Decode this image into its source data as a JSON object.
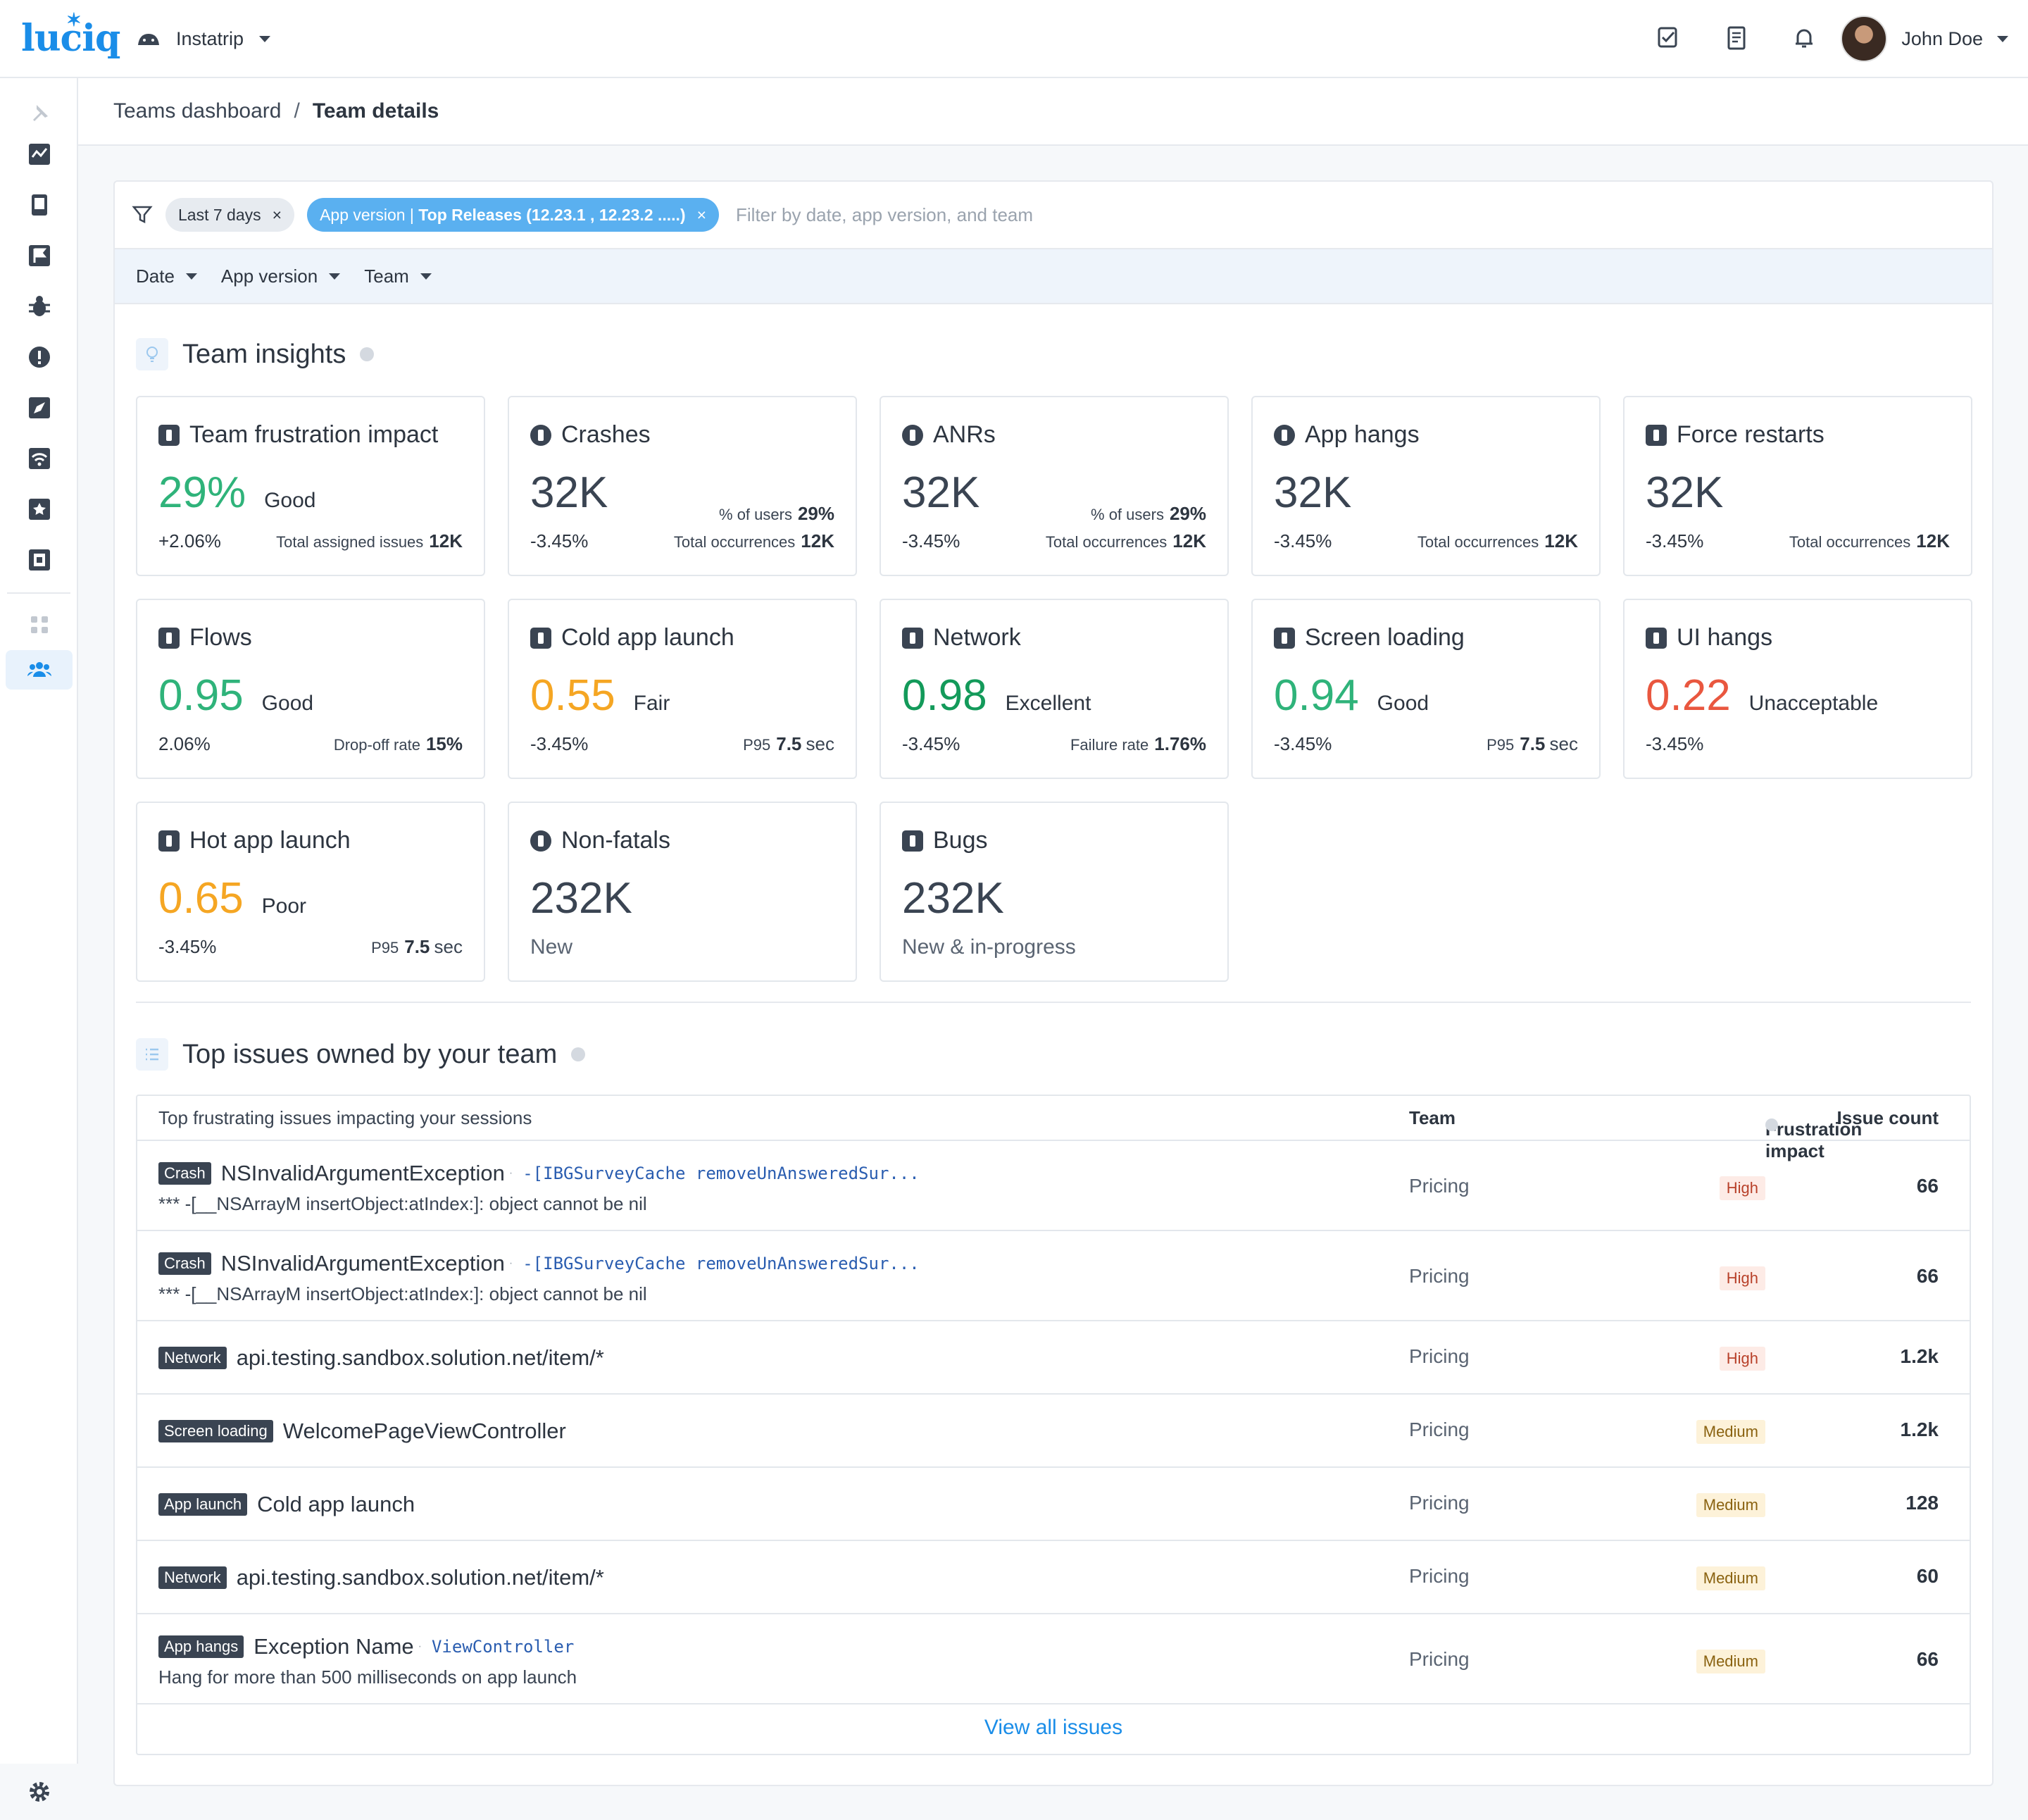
{
  "header": {
    "logo": "luciq",
    "app_name": "Instatrip",
    "user_name": "John Doe",
    "icons": [
      "tasks-icon",
      "notes-icon",
      "bell-icon"
    ]
  },
  "sidebar": {
    "items": [
      "pin-icon",
      "dashboard-icon",
      "devices-icon",
      "flag-icon",
      "bug-icon",
      "alert-icon",
      "rocket-icon",
      "network-icon",
      "star-icon",
      "screen-icon",
      "apps-icon",
      "team-icon"
    ],
    "active": "team-icon"
  },
  "breadcrumb": {
    "parent": "Teams dashboard",
    "separator": "/",
    "current": "Team details"
  },
  "filters": {
    "chip_date": "Last 7 days",
    "chip_version_prefix": "App version | ",
    "chip_version_value": "Top Releases (12.23.1 , 12.23.2 .....)",
    "placeholder": "Filter by date, app version, and team",
    "dropdowns": [
      "Date",
      "App version",
      "Team"
    ]
  },
  "insights": {
    "title": "Team insights",
    "cards": [
      {
        "title": "Team frustration impact",
        "value": "29%",
        "rating": "Good",
        "left": "+2.06%",
        "right_label": "Total assigned issues",
        "right_value": "12K"
      },
      {
        "title": "Crashes",
        "value": "32K",
        "mid_label": "% of users",
        "mid_value": "29%",
        "left": "-3.45%",
        "right_label": "Total occurrences",
        "right_value": "12K"
      },
      {
        "title": "ANRs",
        "value": "32K",
        "mid_label": "% of users",
        "mid_value": "29%",
        "left": "-3.45%",
        "right_label": "Total occurrences",
        "right_value": "12K"
      },
      {
        "title": "App hangs",
        "value": "32K",
        "left": "-3.45%",
        "right_label": "Total occurrences",
        "right_value": "12K"
      },
      {
        "title": "Force restarts",
        "value": "32K",
        "left": "-3.45%",
        "right_label": "Total occurrences",
        "right_value": "12K"
      },
      {
        "title": "Flows",
        "value": "0.95",
        "rating": "Good",
        "left": "2.06%",
        "right_label": "Drop-off rate",
        "right_value": "15%"
      },
      {
        "title": "Cold app launch",
        "value": "0.55",
        "rating": "Fair",
        "left": "-3.45%",
        "right_label": "P95",
        "right_value": "7.5",
        "right_unit": "sec"
      },
      {
        "title": "Network",
        "value": "0.98",
        "rating": "Excellent",
        "left": "-3.45%",
        "right_label": "Failure rate",
        "right_value": "1.76%"
      },
      {
        "title": "Screen loading",
        "value": "0.94",
        "rating": "Good",
        "left": "-3.45%",
        "right_label": "P95",
        "right_value": "7.5",
        "right_unit": "sec"
      },
      {
        "title": "UI hangs",
        "value": "0.22",
        "rating": "Unacceptable",
        "left": "-3.45%"
      },
      {
        "title": "Hot app launch",
        "value": "0.65",
        "rating": "Poor",
        "left": "-3.45%",
        "right_label": "P95",
        "right_value": "7.5",
        "right_unit": "sec"
      },
      {
        "title": "Non-fatals",
        "value": "232K",
        "sub": "New"
      },
      {
        "title": "Bugs",
        "value": "232K",
        "sub": "New & in-progress"
      }
    ]
  },
  "issues": {
    "title": "Top issues owned by your team",
    "columns": [
      "Top frustrating issues impacting your sessions",
      "Team",
      "Frustration impact",
      "Issue count"
    ],
    "rows": [
      {
        "tag": "Crash",
        "name": "NSInvalidArgumentException",
        "sep": "·",
        "code": "-[IBGSurveyCache removeUnAnsweredSur...",
        "detail": "*** -[__NSArrayM insertObject:atIndex:]: object cannot be nil",
        "team": "Pricing",
        "impact": "High",
        "count": "66"
      },
      {
        "tag": "Crash",
        "name": "NSInvalidArgumentException",
        "sep": "·",
        "code": "-[IBGSurveyCache removeUnAnsweredSur...",
        "detail": "*** -[__NSArrayM insertObject:atIndex:]: object cannot be nil",
        "team": "Pricing",
        "impact": "High",
        "count": "66"
      },
      {
        "tag": "Network",
        "name": "api.testing.sandbox.solution.net/item/*",
        "team": "Pricing",
        "impact": "High",
        "count": "1.2k"
      },
      {
        "tag": "Screen loading",
        "name": "WelcomePageViewController",
        "team": "Pricing",
        "impact": "Medium",
        "count": "1.2k"
      },
      {
        "tag": "App launch",
        "name": "Cold app launch",
        "team": "Pricing",
        "impact": "Medium",
        "count": "128"
      },
      {
        "tag": "Network",
        "name": "api.testing.sandbox.solution.net/item/*",
        "team": "Pricing",
        "impact": "Medium",
        "count": "60"
      },
      {
        "tag": "App hangs",
        "name": "Exception Name",
        "sep": "·",
        "code": "ViewController",
        "detail": "Hang for more than 500 milliseconds on app launch",
        "team": "Pricing",
        "impact": "Medium",
        "count": "66"
      }
    ],
    "view_all": "View all issues"
  }
}
